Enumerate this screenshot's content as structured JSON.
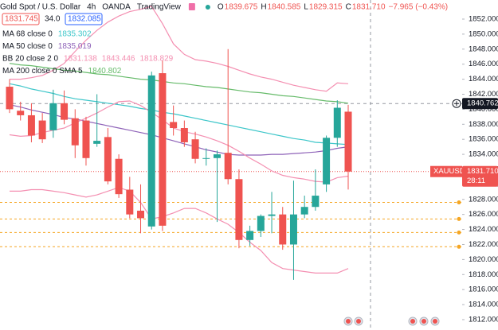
{
  "header": {
    "symbol": "Gold Spot / U.S. Dollar",
    "interval": "4h",
    "exchange": "OANDA",
    "source": "TradingView",
    "ohlc": [
      {
        "key": "O",
        "value": "1839.675"
      },
      {
        "key": "H",
        "value": "1840.585"
      },
      {
        "key": "L",
        "value": "1829.315"
      },
      {
        "key": "C",
        "value": "1831.710"
      }
    ],
    "change": "−7.965 (−0.43%)",
    "bid": "1831.745",
    "spread": "34.0",
    "ask": "1832.085"
  },
  "chart_data": {
    "type": "candlestick",
    "up_color": "#26a69a",
    "down_color": "#ef5350",
    "open": [
      1843.0,
      1839.8,
      1839.2,
      1838.5,
      1837.2,
      1840.8,
      1838.8,
      1838.5,
      1835.4,
      1836.3,
      1833.4,
      1829.3,
      1826.5,
      1824.4,
      1844.8,
      1838.3,
      1837.5,
      1836.0,
      1833.5,
      1833.5,
      1834.2,
      1830.7,
      1822.6,
      1823.8,
      1825.8,
      1826.0,
      1822.0,
      1826.0,
      1827.0,
      1830.0,
      1836.2,
      1839.675
    ],
    "high": [
      1844.0,
      1841.0,
      1840.8,
      1839.5,
      1842.6,
      1842.5,
      1840.0,
      1839.0,
      1842.0,
      1837.5,
      1834.0,
      1831.0,
      1830.0,
      1845.0,
      1846.5,
      1840.5,
      1838.5,
      1837.0,
      1834.8,
      1834.5,
      1848.0,
      1832.0,
      1824.5,
      1826.0,
      1829.0,
      1827.0,
      1830.5,
      1828.5,
      1832.0,
      1836.5,
      1841.2,
      1840.585
    ],
    "low": [
      1839.5,
      1838.5,
      1835.6,
      1835.5,
      1836.2,
      1838.0,
      1833.5,
      1832.5,
      1835.0,
      1830.0,
      1828.2,
      1825.5,
      1823.5,
      1824.0,
      1823.8,
      1836.5,
      1835.0,
      1832.8,
      1832.5,
      1825.0,
      1830.0,
      1821.5,
      1821.8,
      1823.0,
      1823.5,
      1821.3,
      1817.3,
      1825.5,
      1826.5,
      1829.0,
      1835.0,
      1829.315
    ],
    "close": [
      1840.0,
      1839.2,
      1836.5,
      1836.0,
      1840.8,
      1838.6,
      1835.2,
      1833.5,
      1835.8,
      1830.4,
      1828.7,
      1826.0,
      1825.5,
      1844.5,
      1824.5,
      1837.5,
      1835.6,
      1833.4,
      1833.5,
      1834.0,
      1830.7,
      1822.6,
      1823.8,
      1825.8,
      1826.0,
      1822.0,
      1826.0,
      1827.0,
      1828.5,
      1836.2,
      1840.2,
      1831.71
    ],
    "ylim": [
      1810.62,
      1854.54
    ],
    "yticks": [
      {
        "value": 1812,
        "label": "1812.000"
      },
      {
        "value": 1814,
        "label": "1814.000"
      },
      {
        "value": 1816,
        "label": "1816.000"
      },
      {
        "value": 1818,
        "label": "1818.000"
      },
      {
        "value": 1820,
        "label": "1820.000"
      },
      {
        "value": 1822,
        "label": "1822.000"
      },
      {
        "value": 1824,
        "label": "1824.000"
      },
      {
        "value": 1826,
        "label": "1826.000"
      },
      {
        "value": 1828,
        "label": "1828.000"
      },
      {
        "value": 1830,
        "label": "1830.000"
      },
      {
        "value": 1832,
        "label": "1832.000"
      },
      {
        "value": 1834,
        "label": "1834.000"
      },
      {
        "value": 1836,
        "label": "1836.000"
      },
      {
        "value": 1838,
        "label": "1838.000"
      },
      {
        "value": 1840,
        "label": "1840.000"
      },
      {
        "value": 1842,
        "label": "1842.000"
      },
      {
        "value": 1844,
        "label": "1844.000"
      },
      {
        "value": 1846,
        "label": "1846.000"
      },
      {
        "value": 1848,
        "label": "1848.000"
      },
      {
        "value": 1850,
        "label": "1850.000"
      },
      {
        "value": 1852,
        "label": "1852.000"
      }
    ],
    "grid": false,
    "series": [
      {
        "name": "MA 68 close 0",
        "color": "#3cc6c9",
        "readout": [
          "1835.302"
        ],
        "values": [
          1843.4,
          1843.1,
          1842.7,
          1842.4,
          1842.1,
          1841.7,
          1841.4,
          1841.2,
          1841.0,
          1840.8,
          1840.6,
          1840.4,
          1840.1,
          1839.9,
          1839.6,
          1839.4,
          1839.1,
          1838.8,
          1838.5,
          1838.2,
          1837.9,
          1837.6,
          1837.3,
          1837.0,
          1836.7,
          1836.4,
          1836.1,
          1835.9,
          1835.6,
          1835.5,
          1835.4,
          1835.3
        ]
      },
      {
        "name": "MA 50 close 0",
        "color": "#8e62b8",
        "readout": [
          "1835.019"
        ],
        "values": [
          1840.6,
          1840.3,
          1839.9,
          1839.6,
          1839.3,
          1838.9,
          1838.7,
          1838.4,
          1838.1,
          1837.8,
          1837.5,
          1837.2,
          1836.9,
          1836.6,
          1836.2,
          1835.8,
          1835.4,
          1835.0,
          1834.6,
          1834.3,
          1834.0,
          1833.9,
          1833.9,
          1833.9,
          1834.0,
          1834.0,
          1834.1,
          1834.2,
          1834.3,
          1834.5,
          1834.8,
          1835.0
        ]
      },
      {
        "name": "BB 20 close 2 0",
        "color": "#f48fb1",
        "readout": [
          "1831.138",
          "1843.446",
          "1818.829"
        ],
        "basis": [
          1836.6,
          1836.4,
          1836.5,
          1836.9,
          1837.2,
          1837.5,
          1838.2,
          1838.8,
          1839.5,
          1840.3,
          1841.0,
          1841.1,
          1840.5,
          1839.6,
          1838.6,
          1837.5,
          1837.0,
          1836.7,
          1836.3,
          1835.8,
          1835.2,
          1834.4,
          1833.5,
          1832.7,
          1831.8,
          1831.2,
          1830.9,
          1830.7,
          1830.4,
          1830.3,
          1830.9,
          1831.1
        ],
        "upper": [
          1844.0,
          1844.0,
          1844.2,
          1844.5,
          1845.2,
          1846.1,
          1847.7,
          1849.2,
          1850.5,
          1851.6,
          1852.4,
          1853.0,
          1853.3,
          1853.7,
          1851.4,
          1848.7,
          1847.3,
          1846.6,
          1846.4,
          1846.1,
          1845.7,
          1845.2,
          1844.7,
          1844.3,
          1844.0,
          1843.6,
          1843.2,
          1842.9,
          1842.6,
          1842.4,
          1843.5,
          1843.4
        ],
        "lower": [
          1829.1,
          1829.1,
          1829.3,
          1829.3,
          1829.1,
          1828.9,
          1828.6,
          1828.3,
          1828.6,
          1829.1,
          1829.6,
          1829.1,
          1827.6,
          1825.4,
          1825.7,
          1826.2,
          1826.8,
          1826.8,
          1826.2,
          1825.4,
          1824.7,
          1823.6,
          1822.3,
          1821.2,
          1819.6,
          1818.8,
          1818.6,
          1818.4,
          1818.2,
          1818.2,
          1818.2,
          1818.8
        ]
      },
      {
        "name": "MA 200 close 0 SMA 5",
        "color": "#66bb6a",
        "readout": [
          "1840.802"
        ],
        "values": [
          1846.1,
          1845.9,
          1845.8,
          1845.6,
          1845.4,
          1845.2,
          1845.1,
          1844.9,
          1844.7,
          1844.6,
          1844.4,
          1844.2,
          1844.0,
          1843.9,
          1843.7,
          1843.5,
          1843.4,
          1843.2,
          1843.0,
          1842.9,
          1842.7,
          1842.5,
          1842.3,
          1842.2,
          1842.0,
          1841.8,
          1841.7,
          1841.5,
          1841.3,
          1841.1,
          1841.0,
          1840.8
        ]
      }
    ],
    "levels": [
      1827.6,
      1825.4,
      1823.6,
      1821.7
    ],
    "level_color": "#f5a623",
    "crosshair": {
      "value": 1840.762,
      "label": "1840.762"
    },
    "last_price": {
      "value": 1831.71,
      "label": "1831.710",
      "symbol": "XAUUSD",
      "countdown": "28:11"
    }
  }
}
